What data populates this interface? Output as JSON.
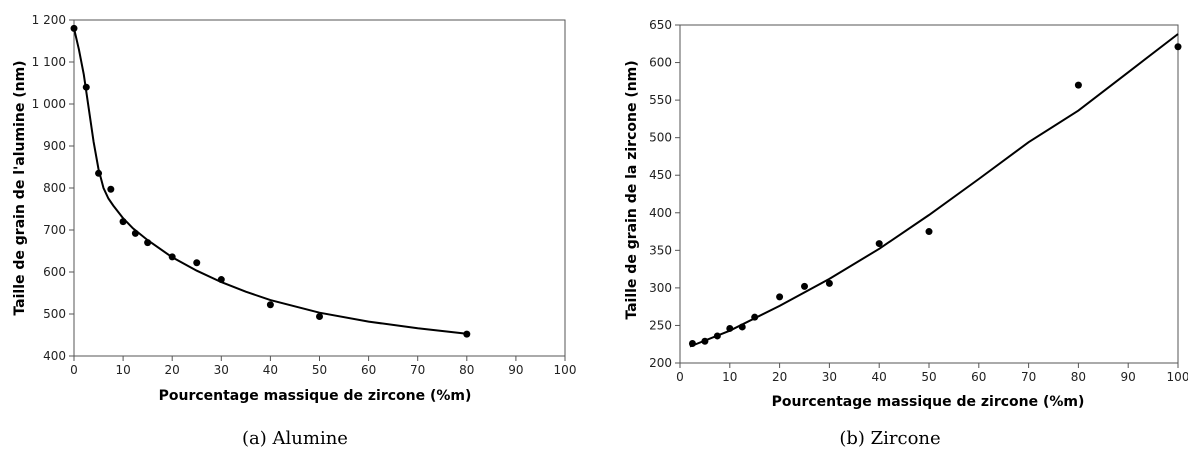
{
  "chart_data": [
    {
      "type": "scatter",
      "caption": "(a) Alumine",
      "xlabel": "Pourcentage massique de zircone (%m)",
      "ylabel": "Taille de grain de l'alumine (nm)",
      "xlim": [
        0,
        100
      ],
      "ylim": [
        400,
        1200
      ],
      "x_ticks": [
        0,
        10,
        20,
        30,
        40,
        50,
        60,
        70,
        80,
        90,
        100
      ],
      "x_tick_labels": [
        "0",
        "10",
        "20",
        "30",
        "40",
        "50",
        "60",
        "70",
        "80",
        "90",
        "100"
      ],
      "y_ticks": [
        400,
        500,
        600,
        700,
        800,
        900,
        1000,
        1100,
        1200
      ],
      "y_tick_labels": [
        "400",
        "500",
        "600",
        "700",
        "800",
        "900",
        "1 000",
        "1 100",
        "1 200"
      ],
      "grid": false,
      "points": [
        {
          "x": 0,
          "y": 1180
        },
        {
          "x": 2.5,
          "y": 1040
        },
        {
          "x": 5,
          "y": 835
        },
        {
          "x": 7.5,
          "y": 797
        },
        {
          "x": 10,
          "y": 720
        },
        {
          "x": 12.5,
          "y": 692
        },
        {
          "x": 15,
          "y": 670
        },
        {
          "x": 20,
          "y": 636
        },
        {
          "x": 25,
          "y": 622
        },
        {
          "x": 30,
          "y": 582
        },
        {
          "x": 40,
          "y": 522
        },
        {
          "x": 50,
          "y": 494
        },
        {
          "x": 80,
          "y": 452
        }
      ],
      "fit_curve": [
        {
          "x": 0,
          "y": 1180
        },
        {
          "x": 1,
          "y": 1130
        },
        {
          "x": 2,
          "y": 1070
        },
        {
          "x": 3,
          "y": 990
        },
        {
          "x": 4,
          "y": 910
        },
        {
          "x": 5,
          "y": 845
        },
        {
          "x": 6,
          "y": 800
        },
        {
          "x": 7,
          "y": 775
        },
        {
          "x": 8,
          "y": 758
        },
        {
          "x": 10,
          "y": 728
        },
        {
          "x": 12,
          "y": 704
        },
        {
          "x": 15,
          "y": 676
        },
        {
          "x": 20,
          "y": 635
        },
        {
          "x": 25,
          "y": 603
        },
        {
          "x": 30,
          "y": 576
        },
        {
          "x": 35,
          "y": 553
        },
        {
          "x": 40,
          "y": 533
        },
        {
          "x": 50,
          "y": 503
        },
        {
          "x": 60,
          "y": 482
        },
        {
          "x": 70,
          "y": 466
        },
        {
          "x": 80,
          "y": 453
        }
      ]
    },
    {
      "type": "scatter",
      "caption": "(b) Zircone",
      "xlabel": "Pourcentage massique de zircone (%m)",
      "ylabel": "Taille de grain de la zircone (nm)",
      "xlim": [
        0,
        100
      ],
      "ylim": [
        200,
        650
      ],
      "x_ticks": [
        0,
        10,
        20,
        30,
        40,
        50,
        60,
        70,
        80,
        90,
        100
      ],
      "x_tick_labels": [
        "0",
        "10",
        "20",
        "30",
        "40",
        "50",
        "60",
        "70",
        "80",
        "90",
        "100"
      ],
      "y_ticks": [
        200,
        250,
        300,
        350,
        400,
        450,
        500,
        550,
        600,
        650
      ],
      "y_tick_labels": [
        "200",
        "250",
        "300",
        "350",
        "400",
        "450",
        "500",
        "550",
        "600",
        "650"
      ],
      "grid": false,
      "points": [
        {
          "x": 2.5,
          "y": 226
        },
        {
          "x": 5,
          "y": 229
        },
        {
          "x": 7.5,
          "y": 236
        },
        {
          "x": 10,
          "y": 246
        },
        {
          "x": 12.5,
          "y": 248
        },
        {
          "x": 15,
          "y": 261
        },
        {
          "x": 20,
          "y": 288
        },
        {
          "x": 25,
          "y": 302
        },
        {
          "x": 30,
          "y": 306
        },
        {
          "x": 40,
          "y": 359
        },
        {
          "x": 50,
          "y": 375
        },
        {
          "x": 80,
          "y": 570
        },
        {
          "x": 100,
          "y": 621
        }
      ],
      "fit_curve": [
        {
          "x": 2,
          "y": 222
        },
        {
          "x": 10,
          "y": 243
        },
        {
          "x": 20,
          "y": 276
        },
        {
          "x": 30,
          "y": 312
        },
        {
          "x": 40,
          "y": 352
        },
        {
          "x": 50,
          "y": 397
        },
        {
          "x": 60,
          "y": 445
        },
        {
          "x": 70,
          "y": 494
        },
        {
          "x": 80,
          "y": 536
        },
        {
          "x": 90,
          "y": 587
        },
        {
          "x": 100,
          "y": 638
        }
      ]
    }
  ]
}
